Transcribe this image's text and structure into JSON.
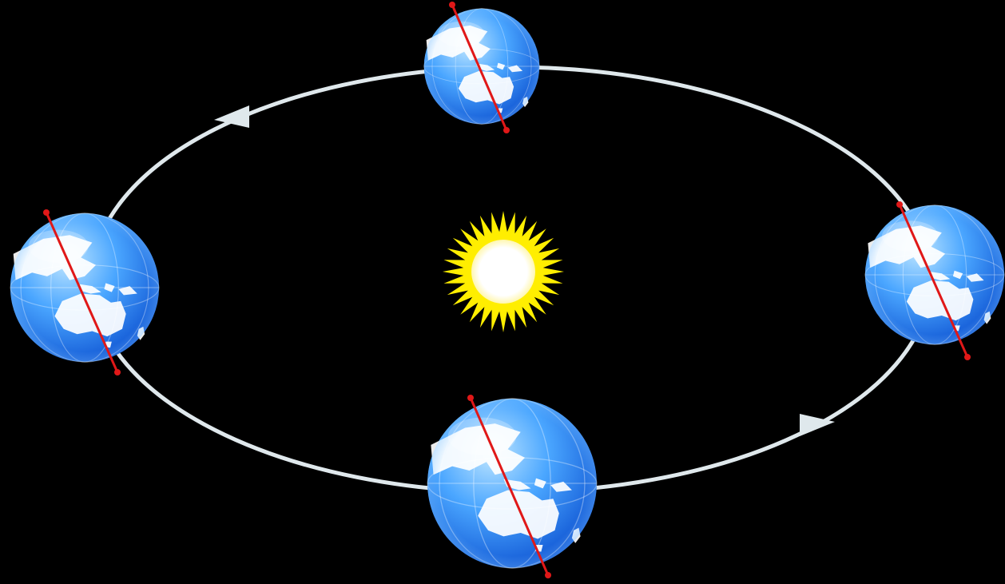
{
  "diagram": {
    "subject": "earth-orbit-around-sun",
    "orbit_direction": "counterclockwise",
    "colors": {
      "background": "#000000",
      "orbit": "#dfe8ec",
      "sun_rays": "#ffee00",
      "sun_core": "#ffffff",
      "earth_ocean": "#1f7ef0",
      "earth_highlight": "#bfe6ff",
      "axis": "#e01818"
    },
    "icons": {
      "sun": "sun-icon",
      "earth": "earth-globe-icon",
      "direction": "arrowhead-icon"
    },
    "earth_positions": [
      "top",
      "left",
      "right",
      "bottom"
    ]
  }
}
